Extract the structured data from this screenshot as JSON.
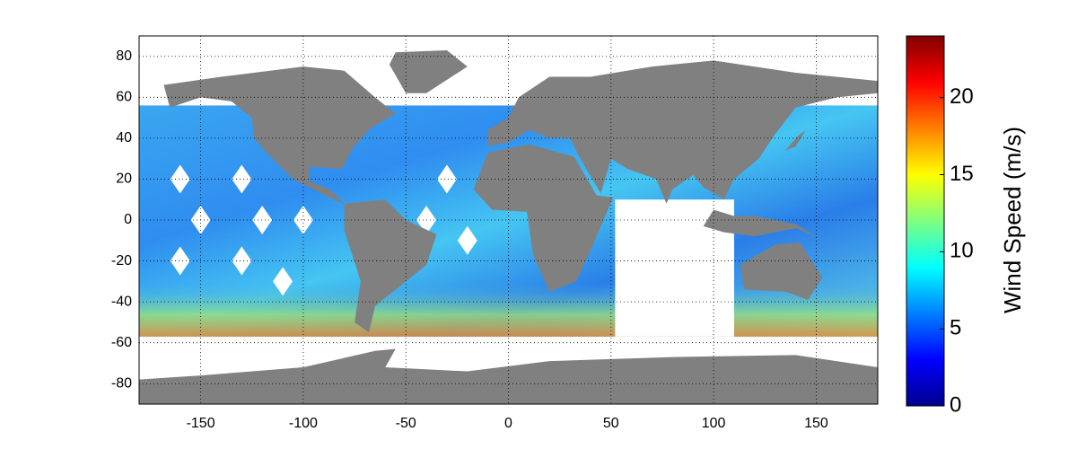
{
  "map": {
    "xlim": [
      -180,
      180
    ],
    "ylim": [
      -90,
      90
    ],
    "xticks": [
      -150,
      -100,
      -50,
      0,
      50,
      100,
      150
    ],
    "yticks": [
      -80,
      -60,
      -40,
      -20,
      0,
      20,
      40,
      60,
      80
    ],
    "grid": true,
    "colorbar": {
      "label": "Wind Speed (m/s)",
      "lim": [
        0,
        24
      ],
      "ticks": [
        0,
        5,
        10,
        15,
        20
      ]
    }
  }
}
